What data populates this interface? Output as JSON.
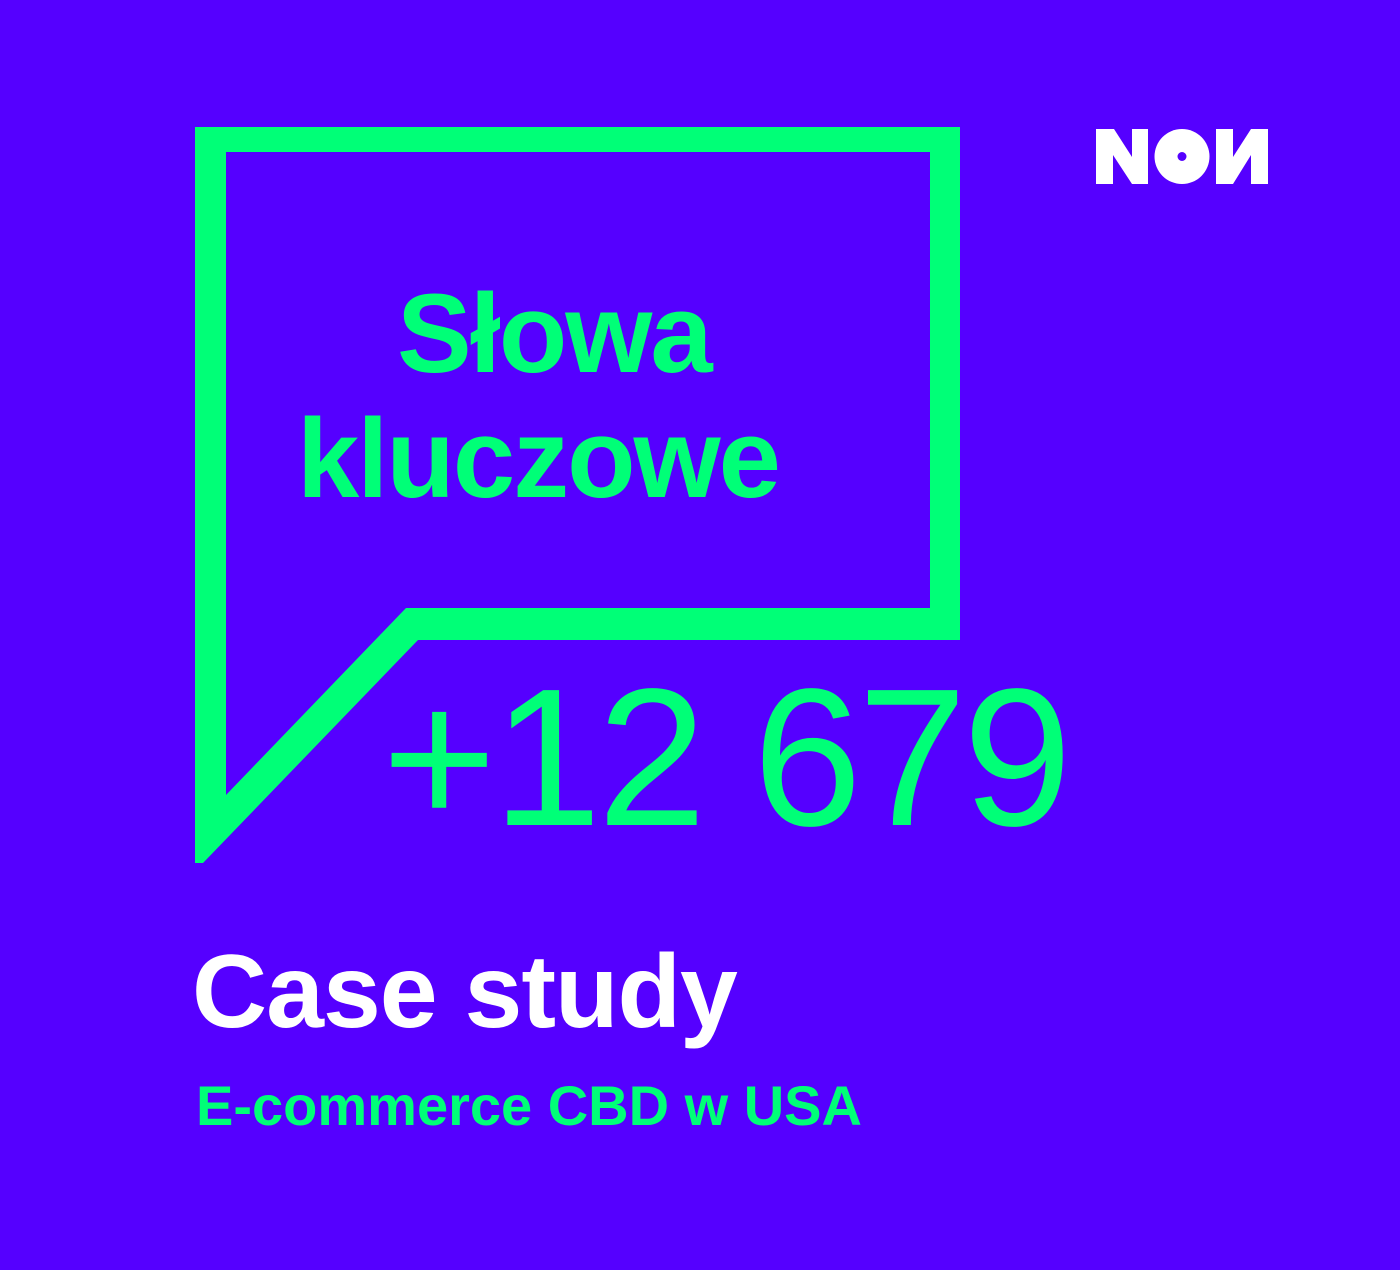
{
  "logo": {
    "text": "NON",
    "color": "#ffffff"
  },
  "bubble": {
    "line1": "Słowa",
    "line2": "kluczowe"
  },
  "stat": "+12 679",
  "title": "Case study",
  "subtitle": "E-commerce CBD w USA",
  "colors": {
    "background": "#5500ff",
    "accent": "#00ff77",
    "text": "#ffffff"
  }
}
